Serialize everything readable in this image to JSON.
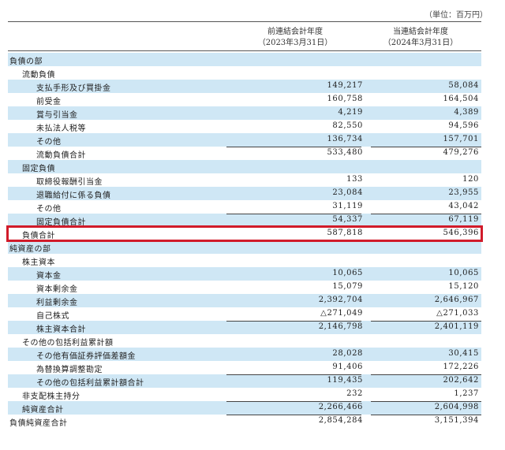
{
  "unit_label": "（単位：百万円）",
  "columns": {
    "prev_line1": "前連結会計年度",
    "prev_line2": "（2023年3月31日）",
    "curr_line1": "当連結会計年度",
    "curr_line2": "（2024年3月31日）"
  },
  "rows": [
    {
      "label": "負債の部",
      "indent": 0,
      "prev": "",
      "curr": ""
    },
    {
      "label": "流動負債",
      "indent": 1,
      "prev": "",
      "curr": ""
    },
    {
      "label": "支払手形及び買掛金",
      "indent": 2,
      "prev": "149,217",
      "curr": "58,084"
    },
    {
      "label": "前受金",
      "indent": 2,
      "prev": "160,758",
      "curr": "164,504"
    },
    {
      "label": "賞与引当金",
      "indent": 2,
      "prev": "4,219",
      "curr": "4,389"
    },
    {
      "label": "未払法人税等",
      "indent": 2,
      "prev": "82,550",
      "curr": "94,596"
    },
    {
      "label": "その他",
      "indent": 2,
      "prev": "136,734",
      "curr": "157,701"
    },
    {
      "label": "流動負債合計",
      "indent": 2,
      "prev": "533,480",
      "curr": "479,276",
      "rule": true
    },
    {
      "label": "固定負債",
      "indent": 1,
      "prev": "",
      "curr": ""
    },
    {
      "label": "取締役報酬引当金",
      "indent": 2,
      "prev": "133",
      "curr": "120"
    },
    {
      "label": "退職給付に係る負債",
      "indent": 2,
      "prev": "23,084",
      "curr": "23,955"
    },
    {
      "label": "その他",
      "indent": 2,
      "prev": "31,119",
      "curr": "43,042"
    },
    {
      "label": "固定負債合計",
      "indent": 2,
      "prev": "54,337",
      "curr": "67,119",
      "rule": true
    },
    {
      "label": "負債合計",
      "indent": 1,
      "prev": "587,818",
      "curr": "546,396",
      "rule": true
    },
    {
      "label": "純資産の部",
      "indent": 0,
      "prev": "",
      "curr": ""
    },
    {
      "label": "株主資本",
      "indent": 1,
      "prev": "",
      "curr": ""
    },
    {
      "label": "資本金",
      "indent": 2,
      "prev": "10,065",
      "curr": "10,065"
    },
    {
      "label": "資本剰余金",
      "indent": 2,
      "prev": "15,079",
      "curr": "15,120"
    },
    {
      "label": "利益剰余金",
      "indent": 2,
      "prev": "2,392,704",
      "curr": "2,646,967"
    },
    {
      "label": "自己株式",
      "indent": 2,
      "prev": "△271,049",
      "curr": "△271,033"
    },
    {
      "label": "株主資本合計",
      "indent": 2,
      "prev": "2,146,798",
      "curr": "2,401,119",
      "rule": true
    },
    {
      "label": "その他の包括利益累計額",
      "indent": 1,
      "prev": "",
      "curr": ""
    },
    {
      "label": "その他有価証券評価差額金",
      "indent": 2,
      "prev": "28,028",
      "curr": "30,415"
    },
    {
      "label": "為替換算調整勘定",
      "indent": 2,
      "prev": "91,406",
      "curr": "172,226"
    },
    {
      "label": "その他の包括利益累計額合計",
      "indent": 2,
      "prev": "119,435",
      "curr": "202,642",
      "rule": true
    },
    {
      "label": "非支配株主持分",
      "indent": 1,
      "prev": "232",
      "curr": "1,237"
    },
    {
      "label": "純資産合計",
      "indent": 1,
      "prev": "2,266,466",
      "curr": "2,604,998",
      "rule": true
    },
    {
      "label": "負債純資産合計",
      "indent": 0,
      "prev": "2,854,284",
      "curr": "3,151,394",
      "rule": true
    }
  ]
}
